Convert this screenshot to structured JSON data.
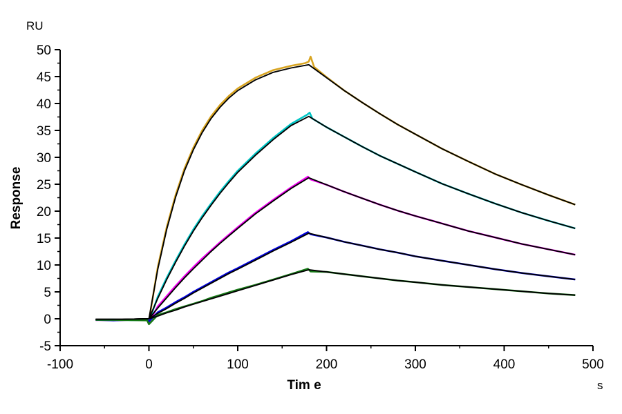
{
  "labels": {
    "y_unit": "RU",
    "y_title": "Response",
    "x_title": "Tim e",
    "x_unit": "s"
  },
  "chart_data": {
    "type": "line",
    "title": "",
    "xlabel": "Time",
    "ylabel": "Response",
    "x_unit": "s",
    "y_unit": "RU",
    "xlim": [
      -100,
      500
    ],
    "ylim": [
      -5,
      50
    ],
    "grid": false,
    "legend": "none",
    "x_major_ticks": [
      -100,
      0,
      100,
      200,
      300,
      400,
      500
    ],
    "x_minor_ticks": [
      -50,
      50,
      150,
      250,
      350,
      450
    ],
    "y_major_ticks": [
      -5,
      0,
      5,
      10,
      15,
      20,
      25,
      30,
      35,
      40,
      45,
      50
    ],
    "y_minor_ticks": [
      -2.5,
      2.5,
      7.5,
      12.5,
      17.5,
      22.5,
      27.5,
      32.5,
      37.5,
      42.5,
      47.5
    ],
    "association_start_s": 0,
    "association_end_s": 180,
    "dissociation_end_s": 480,
    "fit_color": "#000000",
    "series": [
      {
        "name": "sensorgram-1-gold",
        "color": "#D8A420",
        "peak_ru": 48.7,
        "end_ru": 21.2,
        "points": [
          [
            -60,
            -0.2
          ],
          [
            -40,
            -0.3
          ],
          [
            -20,
            -0.2
          ],
          [
            -2,
            -0.2
          ],
          [
            0,
            -0.4
          ],
          [
            10,
            9.6
          ],
          [
            20,
            17.0
          ],
          [
            30,
            23.0
          ],
          [
            40,
            27.9
          ],
          [
            50,
            31.8
          ],
          [
            60,
            35.0
          ],
          [
            70,
            37.6
          ],
          [
            80,
            39.7
          ],
          [
            90,
            41.4
          ],
          [
            100,
            42.8
          ],
          [
            120,
            44.8
          ],
          [
            140,
            46.2
          ],
          [
            160,
            47.0
          ],
          [
            176,
            47.5
          ],
          [
            180,
            47.8
          ],
          [
            182,
            48.7
          ],
          [
            186,
            46.8
          ],
          [
            200,
            44.9
          ],
          [
            220,
            42.4
          ],
          [
            240,
            40.2
          ],
          [
            260,
            38.1
          ],
          [
            280,
            36.1
          ],
          [
            300,
            34.3
          ],
          [
            330,
            31.6
          ],
          [
            360,
            29.2
          ],
          [
            390,
            26.9
          ],
          [
            420,
            24.9
          ],
          [
            450,
            23.0
          ],
          [
            480,
            21.2
          ]
        ],
        "fit": [
          [
            -60,
            -0.1
          ],
          [
            -30,
            -0.1
          ],
          [
            0,
            0
          ],
          [
            10,
            9.2
          ],
          [
            20,
            16.6
          ],
          [
            30,
            22.6
          ],
          [
            40,
            27.5
          ],
          [
            50,
            31.4
          ],
          [
            60,
            34.6
          ],
          [
            70,
            37.2
          ],
          [
            80,
            39.3
          ],
          [
            90,
            41.0
          ],
          [
            100,
            42.4
          ],
          [
            120,
            44.4
          ],
          [
            140,
            45.8
          ],
          [
            160,
            46.6
          ],
          [
            180,
            47.2
          ],
          [
            200,
            44.8
          ],
          [
            220,
            42.4
          ],
          [
            240,
            40.2
          ],
          [
            260,
            38.1
          ],
          [
            280,
            36.1
          ],
          [
            300,
            34.3
          ],
          [
            330,
            31.6
          ],
          [
            360,
            29.2
          ],
          [
            390,
            26.9
          ],
          [
            420,
            24.9
          ],
          [
            450,
            23.0
          ],
          [
            480,
            21.2
          ]
        ]
      },
      {
        "name": "sensorgram-2-cyan",
        "color": "#00C6C6",
        "peak_ru": 38.3,
        "end_ru": 16.8,
        "points": [
          [
            -60,
            -0.2
          ],
          [
            -40,
            -0.15
          ],
          [
            -20,
            -0.25
          ],
          [
            -2,
            -0.2
          ],
          [
            0,
            -0.5
          ],
          [
            10,
            4.1
          ],
          [
            20,
            7.6
          ],
          [
            30,
            10.8
          ],
          [
            40,
            13.8
          ],
          [
            50,
            16.6
          ],
          [
            60,
            19.1
          ],
          [
            70,
            21.4
          ],
          [
            80,
            23.6
          ],
          [
            90,
            25.6
          ],
          [
            100,
            27.5
          ],
          [
            120,
            30.7
          ],
          [
            140,
            33.6
          ],
          [
            160,
            36.2
          ],
          [
            178,
            37.9
          ],
          [
            181,
            38.3
          ],
          [
            184,
            37.2
          ],
          [
            200,
            35.6
          ],
          [
            220,
            33.8
          ],
          [
            240,
            32.0
          ],
          [
            260,
            30.3
          ],
          [
            280,
            28.8
          ],
          [
            300,
            27.3
          ],
          [
            330,
            25.1
          ],
          [
            360,
            23.2
          ],
          [
            390,
            21.4
          ],
          [
            420,
            19.7
          ],
          [
            450,
            18.2
          ],
          [
            480,
            16.8
          ]
        ],
        "fit": [
          [
            -60,
            -0.1
          ],
          [
            -30,
            -0.1
          ],
          [
            0,
            0
          ],
          [
            10,
            3.8
          ],
          [
            20,
            7.3
          ],
          [
            30,
            10.5
          ],
          [
            40,
            13.5
          ],
          [
            50,
            16.3
          ],
          [
            60,
            18.8
          ],
          [
            70,
            21.1
          ],
          [
            80,
            23.3
          ],
          [
            90,
            25.3
          ],
          [
            100,
            27.2
          ],
          [
            120,
            30.4
          ],
          [
            140,
            33.3
          ],
          [
            160,
            35.9
          ],
          [
            180,
            37.6
          ],
          [
            200,
            35.6
          ],
          [
            220,
            33.8
          ],
          [
            240,
            32.0
          ],
          [
            260,
            30.3
          ],
          [
            280,
            28.8
          ],
          [
            300,
            27.3
          ],
          [
            330,
            25.1
          ],
          [
            360,
            23.2
          ],
          [
            390,
            21.4
          ],
          [
            420,
            19.7
          ],
          [
            450,
            18.2
          ],
          [
            480,
            16.8
          ]
        ]
      },
      {
        "name": "sensorgram-3-magenta",
        "color": "#F200F2",
        "peak_ru": 26.4,
        "end_ru": 11.9,
        "points": [
          [
            -60,
            -0.25
          ],
          [
            -40,
            -0.2
          ],
          [
            -20,
            -0.2
          ],
          [
            -2,
            -0.25
          ],
          [
            0,
            -0.6
          ],
          [
            10,
            2.3
          ],
          [
            20,
            4.2
          ],
          [
            30,
            6.1
          ],
          [
            40,
            7.9
          ],
          [
            50,
            9.6
          ],
          [
            60,
            11.2
          ],
          [
            70,
            12.7
          ],
          [
            80,
            14.2
          ],
          [
            90,
            15.6
          ],
          [
            100,
            17.0
          ],
          [
            120,
            19.7
          ],
          [
            140,
            22.1
          ],
          [
            160,
            24.4
          ],
          [
            179,
            26.4
          ],
          [
            182,
            25.9
          ],
          [
            200,
            24.9
          ],
          [
            220,
            23.6
          ],
          [
            240,
            22.4
          ],
          [
            260,
            21.2
          ],
          [
            280,
            20.1
          ],
          [
            300,
            19.1
          ],
          [
            330,
            17.7
          ],
          [
            360,
            16.3
          ],
          [
            390,
            15.1
          ],
          [
            420,
            13.9
          ],
          [
            450,
            12.9
          ],
          [
            480,
            11.9
          ]
        ],
        "fit": [
          [
            -60,
            -0.1
          ],
          [
            -30,
            -0.1
          ],
          [
            0,
            0
          ],
          [
            10,
            2.0
          ],
          [
            20,
            3.9
          ],
          [
            30,
            5.8
          ],
          [
            40,
            7.6
          ],
          [
            50,
            9.3
          ],
          [
            60,
            10.9
          ],
          [
            70,
            12.5
          ],
          [
            80,
            14.0
          ],
          [
            90,
            15.4
          ],
          [
            100,
            16.8
          ],
          [
            120,
            19.5
          ],
          [
            140,
            21.9
          ],
          [
            160,
            24.2
          ],
          [
            180,
            26.2
          ],
          [
            200,
            24.9
          ],
          [
            220,
            23.6
          ],
          [
            240,
            22.4
          ],
          [
            260,
            21.2
          ],
          [
            280,
            20.1
          ],
          [
            300,
            19.1
          ],
          [
            330,
            17.7
          ],
          [
            360,
            16.3
          ],
          [
            390,
            15.1
          ],
          [
            420,
            13.9
          ],
          [
            450,
            12.9
          ],
          [
            480,
            11.9
          ]
        ]
      },
      {
        "name": "sensorgram-4-blue",
        "color": "#0000DC",
        "peak_ru": 16.1,
        "end_ru": 7.3,
        "points": [
          [
            -60,
            -0.2
          ],
          [
            -40,
            -0.3
          ],
          [
            -20,
            -0.2
          ],
          [
            -2,
            -0.2
          ],
          [
            0,
            -0.5
          ],
          [
            10,
            1.2
          ],
          [
            20,
            2.1
          ],
          [
            30,
            3.1
          ],
          [
            40,
            4.0
          ],
          [
            50,
            5.0
          ],
          [
            60,
            5.9
          ],
          [
            70,
            6.8
          ],
          [
            80,
            7.7
          ],
          [
            90,
            8.6
          ],
          [
            100,
            9.4
          ],
          [
            120,
            11.1
          ],
          [
            140,
            12.8
          ],
          [
            160,
            14.4
          ],
          [
            179,
            16.1
          ],
          [
            182,
            15.7
          ],
          [
            200,
            15.1
          ],
          [
            220,
            14.3
          ],
          [
            240,
            13.6
          ],
          [
            260,
            12.9
          ],
          [
            280,
            12.3
          ],
          [
            300,
            11.6
          ],
          [
            330,
            10.8
          ],
          [
            360,
            10.0
          ],
          [
            390,
            9.2
          ],
          [
            420,
            8.5
          ],
          [
            450,
            7.9
          ],
          [
            480,
            7.3
          ]
        ],
        "fit": [
          [
            -60,
            -0.1
          ],
          [
            -30,
            -0.1
          ],
          [
            0,
            0
          ],
          [
            10,
            1.0
          ],
          [
            20,
            1.9
          ],
          [
            30,
            2.9
          ],
          [
            40,
            3.8
          ],
          [
            50,
            4.8
          ],
          [
            60,
            5.7
          ],
          [
            70,
            6.6
          ],
          [
            80,
            7.5
          ],
          [
            90,
            8.4
          ],
          [
            100,
            9.2
          ],
          [
            120,
            10.9
          ],
          [
            140,
            12.6
          ],
          [
            160,
            14.2
          ],
          [
            180,
            15.9
          ],
          [
            200,
            15.1
          ],
          [
            220,
            14.3
          ],
          [
            240,
            13.6
          ],
          [
            260,
            12.9
          ],
          [
            280,
            12.3
          ],
          [
            300,
            11.6
          ],
          [
            330,
            10.8
          ],
          [
            360,
            10.0
          ],
          [
            390,
            9.2
          ],
          [
            420,
            8.5
          ],
          [
            450,
            7.9
          ],
          [
            480,
            7.3
          ]
        ]
      },
      {
        "name": "sensorgram-5-green",
        "color": "#157815",
        "peak_ru": 9.3,
        "end_ru": 4.4,
        "points": [
          [
            -60,
            -0.2
          ],
          [
            -40,
            -0.2
          ],
          [
            -20,
            -0.25
          ],
          [
            -2,
            -0.3
          ],
          [
            0,
            -1.0
          ],
          [
            10,
            0.7
          ],
          [
            20,
            1.2
          ],
          [
            30,
            1.8
          ],
          [
            40,
            2.3
          ],
          [
            50,
            2.8
          ],
          [
            60,
            3.3
          ],
          [
            70,
            3.9
          ],
          [
            80,
            4.4
          ],
          [
            90,
            4.9
          ],
          [
            100,
            5.4
          ],
          [
            120,
            6.3
          ],
          [
            140,
            7.3
          ],
          [
            160,
            8.3
          ],
          [
            179,
            9.3
          ],
          [
            182,
            8.8
          ],
          [
            200,
            8.7
          ],
          [
            220,
            8.3
          ],
          [
            240,
            7.9
          ],
          [
            260,
            7.5
          ],
          [
            280,
            7.1
          ],
          [
            300,
            6.8
          ],
          [
            330,
            6.3
          ],
          [
            360,
            5.9
          ],
          [
            390,
            5.5
          ],
          [
            420,
            5.1
          ],
          [
            450,
            4.7
          ],
          [
            480,
            4.4
          ]
        ],
        "fit": [
          [
            -60,
            -0.1
          ],
          [
            -30,
            -0.1
          ],
          [
            0,
            0
          ],
          [
            10,
            0.5
          ],
          [
            20,
            1.1
          ],
          [
            30,
            1.6
          ],
          [
            40,
            2.2
          ],
          [
            50,
            2.7
          ],
          [
            60,
            3.2
          ],
          [
            70,
            3.7
          ],
          [
            80,
            4.2
          ],
          [
            90,
            4.7
          ],
          [
            100,
            5.2
          ],
          [
            120,
            6.2
          ],
          [
            140,
            7.2
          ],
          [
            160,
            8.2
          ],
          [
            180,
            9.1
          ],
          [
            200,
            8.7
          ],
          [
            220,
            8.3
          ],
          [
            240,
            7.9
          ],
          [
            260,
            7.5
          ],
          [
            280,
            7.1
          ],
          [
            300,
            6.8
          ],
          [
            330,
            6.3
          ],
          [
            360,
            5.9
          ],
          [
            390,
            5.5
          ],
          [
            420,
            5.1
          ],
          [
            450,
            4.7
          ],
          [
            480,
            4.4
          ]
        ]
      }
    ]
  }
}
